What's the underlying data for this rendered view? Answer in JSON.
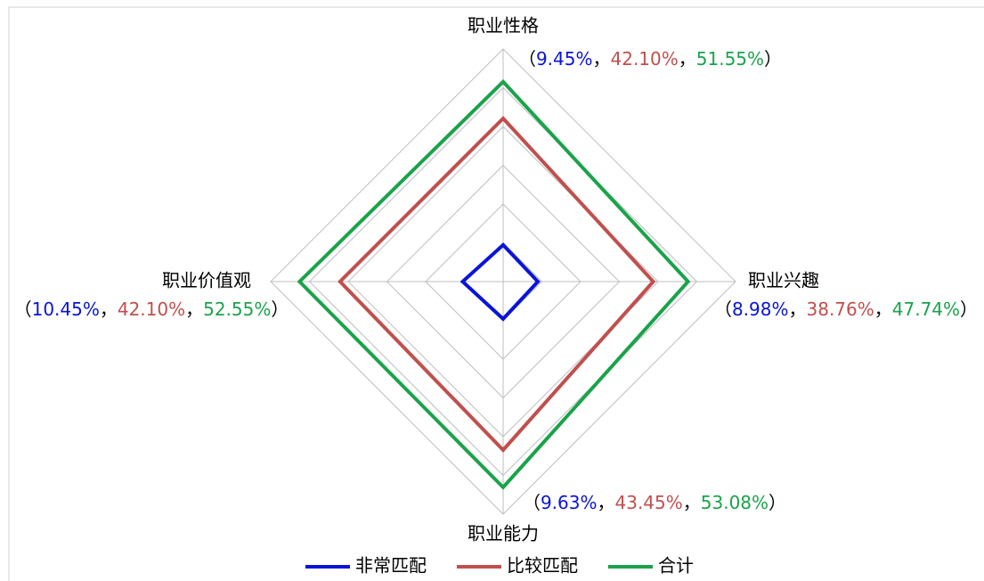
{
  "chart_data": {
    "type": "radar",
    "categories": [
      "职业性格",
      "职业兴趣",
      "职业能力",
      "职业价值观"
    ],
    "series": [
      {
        "name": "非常匹配",
        "color": "#0a14d6",
        "values": [
          9.45,
          8.98,
          9.63,
          10.45
        ],
        "value_labels": [
          "9.45%",
          "8.98%",
          "9.63%",
          "10.45%"
        ]
      },
      {
        "name": "比较匹配",
        "color": "#c0504d",
        "values": [
          42.1,
          38.76,
          43.45,
          42.1
        ],
        "value_labels": [
          "42.10%",
          "38.76%",
          "43.45%",
          "42.10%"
        ]
      },
      {
        "name": "合计",
        "color": "#1aa34a",
        "values": [
          51.55,
          47.74,
          53.08,
          52.55
        ],
        "value_labels": [
          "51.55%",
          "47.74%",
          "53.08%",
          "52.55%"
        ]
      }
    ],
    "label_open": "（",
    "label_sep": "，",
    "label_close": "）",
    "ylim": [
      0,
      60
    ],
    "yticks": [
      0,
      10,
      20,
      30,
      40,
      50,
      60
    ],
    "grid": true,
    "legend": "bottom"
  }
}
